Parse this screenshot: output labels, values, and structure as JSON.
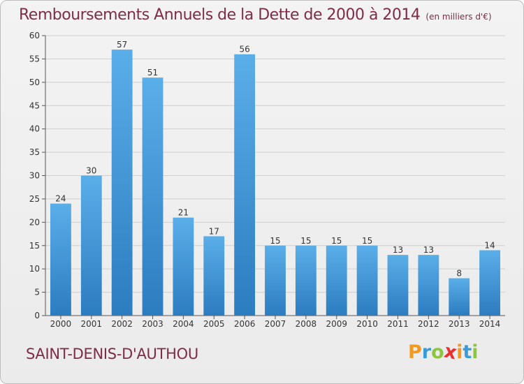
{
  "header": {
    "title": "Remboursements Annuels de la Dette de 2000 à 2014",
    "unit": "(en milliers d'€)"
  },
  "footer": {
    "commune": "SAINT-DENIS-D'AUTHOU",
    "logo": {
      "text": "Proxiti",
      "letters": [
        "P",
        "r",
        "o",
        "x",
        "i",
        "t",
        "i"
      ],
      "colors": [
        "#f29a1f",
        "#3a9bd9",
        "#8cc63f",
        "#e8312f",
        "#f29a1f",
        "#3a9bd9",
        "#8cc63f"
      ]
    }
  },
  "colors": {
    "bar_top": "#5aaee8",
    "bar_bottom": "#2c7cc0",
    "title": "#7f2c47",
    "grid": "#cfcfcf"
  },
  "chart_data": {
    "type": "bar",
    "title": "Remboursements Annuels de la Dette de 2000 à 2014",
    "xlabel": "",
    "ylabel": "",
    "categories": [
      "2000",
      "2001",
      "2002",
      "2003",
      "2004",
      "2005",
      "2006",
      "2007",
      "2008",
      "2009",
      "2010",
      "2011",
      "2012",
      "2013",
      "2014"
    ],
    "values": [
      24,
      30,
      57,
      51,
      21,
      17,
      56,
      15,
      15,
      15,
      15,
      13,
      13,
      8,
      14
    ],
    "value_labels": [
      "24",
      "30",
      "57",
      "51",
      "21",
      "17",
      "56",
      "15",
      "15",
      "15",
      "15",
      "13",
      "13",
      "8",
      "14"
    ],
    "ylim": [
      0,
      60
    ],
    "yticks": [
      0,
      5,
      10,
      15,
      20,
      25,
      30,
      35,
      40,
      45,
      50,
      55,
      60
    ],
    "ytick_labels": [
      "0",
      "5",
      "10",
      "15",
      "20",
      "25",
      "30",
      "35",
      "40",
      "45",
      "50",
      "55",
      "60"
    ],
    "grid": true,
    "legend": "none"
  }
}
